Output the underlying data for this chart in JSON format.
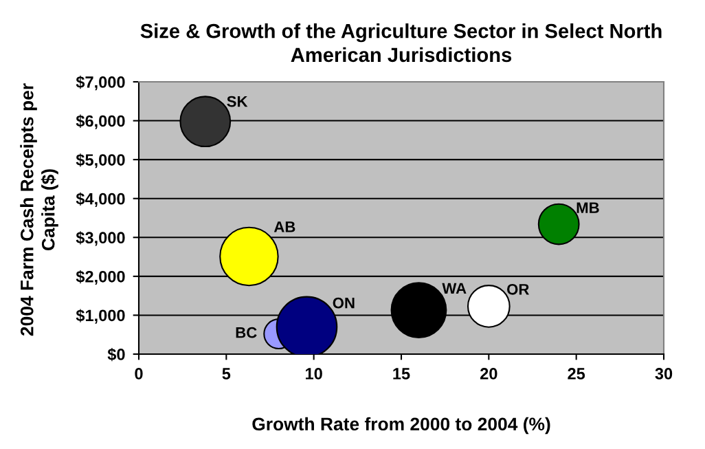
{
  "chart_data": {
    "type": "bubble",
    "title": "Size & Growth of the Agriculture Sector in Select North American Jurisdictions",
    "xlabel": "Growth Rate from 2000 to 2004 (%)",
    "ylabel": "2004 Farm Cash Receipts per Capita ($)",
    "series": [
      {
        "name": "SK",
        "color": "#333333",
        "x": [
          3.8
        ],
        "values": [
          5980
        ],
        "sizes": [
          0.69
        ]
      },
      {
        "name": "AB",
        "color": "#ffff00",
        "x": [
          6.3
        ],
        "values": [
          2510
        ],
        "sizes": [
          0.93
        ]
      },
      {
        "name": "BC",
        "color": "#9999ff",
        "x": [
          8.0
        ],
        "values": [
          520
        ],
        "sizes": [
          0.24
        ]
      },
      {
        "name": "ON",
        "color": "#000080",
        "x": [
          9.6
        ],
        "values": [
          700
        ],
        "sizes": [
          1
        ]
      },
      {
        "name": "WA",
        "color": "#000000",
        "x": [
          16.0
        ],
        "values": [
          1130
        ],
        "sizes": [
          0.83
        ]
      },
      {
        "name": "OR",
        "color": "#ffffff",
        "x": [
          20.0
        ],
        "values": [
          1230
        ],
        "sizes": [
          0.48
        ]
      },
      {
        "name": "MB",
        "color": "#008000",
        "x": [
          24.0
        ],
        "values": [
          3340
        ],
        "sizes": [
          0.45
        ]
      }
    ],
    "xlim": [
      0,
      30
    ],
    "xticks": [
      0,
      5,
      10,
      15,
      20,
      25,
      30
    ],
    "ylim": [
      0,
      7000
    ],
    "yticks": [
      {
        "value": 0,
        "label": "$0"
      },
      {
        "value": 1000,
        "label": "$1,000"
      },
      {
        "value": 2000,
        "label": "$2,000"
      },
      {
        "value": 3000,
        "label": "$3,000"
      },
      {
        "value": 4000,
        "label": "$4,000"
      },
      {
        "value": 5000,
        "label": "$5,000"
      },
      {
        "value": 6000,
        "label": "$6,000"
      },
      {
        "value": 7000,
        "label": "$7,000"
      }
    ],
    "grid": "y",
    "legend": false
  }
}
